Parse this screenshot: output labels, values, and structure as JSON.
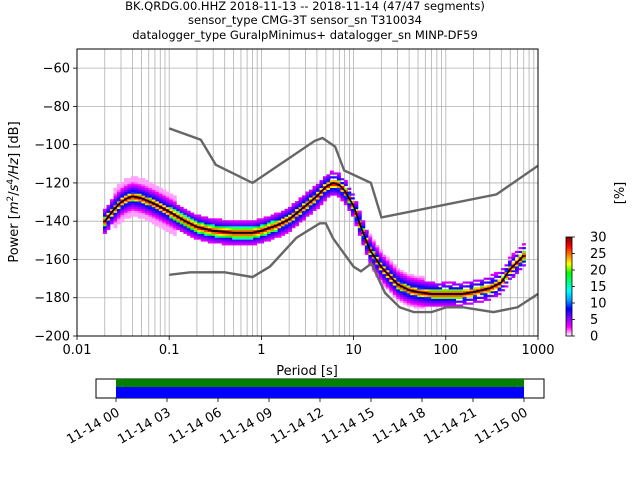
{
  "chart_data": {
    "type": "heatmap",
    "title_lines": [
      "BK.QRDG.00.HHZ   2018-11-13 -- 2018-11-14  (47/47 segments)",
      "sensor_type CMG-3T sensor_sn T310034",
      "datalogger_type GuralpMinimus+ datalogger_sn MINP-DF59"
    ],
    "xlabel": "Period [s]",
    "ylabel_parts": [
      "Power [",
      "m",
      "2",
      "/",
      "s",
      "4",
      "/Hz",
      "] [dB]"
    ],
    "x_scale": "log",
    "xlim": [
      0.01,
      1000
    ],
    "ylim": [
      -200,
      -50
    ],
    "x_ticks": [
      0.01,
      0.1,
      1,
      10,
      100,
      1000
    ],
    "x_tick_labels": [
      "0.01",
      "0.1",
      "1",
      "10",
      "100",
      "1000"
    ],
    "y_ticks": [
      -200,
      -180,
      -160,
      -140,
      -120,
      -100,
      -80,
      -60
    ],
    "y_tick_labels": [
      "−200",
      "−180",
      "−160",
      "−140",
      "−120",
      "−100",
      "−80",
      "−60"
    ],
    "grid": true,
    "colorbar": {
      "label": "[%]",
      "range": [
        0,
        30
      ],
      "ticks": [
        0,
        5,
        10,
        15,
        20,
        25,
        30
      ],
      "tick_labels": [
        "0",
        "5",
        "10",
        "15",
        "20",
        "25",
        "30"
      ],
      "colors": [
        "#ffffff",
        "#ff00ff",
        "#8000ff",
        "#0000ff",
        "#00a0ff",
        "#00ffff",
        "#00ff80",
        "#00ff00",
        "#ffff00",
        "#ff8000",
        "#ff0000",
        "#800000"
      ]
    },
    "noise_models": {
      "color": "#666666",
      "high": {
        "period": [
          0.1,
          0.22,
          0.32,
          0.8,
          3.8,
          4.6,
          6.3,
          7.9,
          15.4,
          20,
          354.8,
          1000
        ],
        "db": [
          -91.5,
          -97.4,
          -110.5,
          -120,
          -98,
          -96.5,
          -101,
          -113.5,
          -120,
          -138,
          -126,
          -111
        ]
      },
      "low": {
        "period": [
          0.1,
          0.17,
          0.4,
          0.8,
          1.24,
          2.4,
          4.3,
          5,
          6,
          10,
          12,
          15.6,
          21.9,
          31.6,
          45,
          70,
          101,
          154,
          328,
          600,
          1000
        ],
        "db": [
          -168,
          -166.7,
          -166.7,
          -169.2,
          -163.7,
          -148.6,
          -141.1,
          -141.1,
          -149,
          -163.8,
          -166.2,
          -162.1,
          -177.5,
          -185,
          -187.5,
          -187.5,
          -185,
          -185,
          -187.5,
          -185,
          -178
        ]
      }
    },
    "series": [
      {
        "name": "",
        "color": "#000000",
        "period": [
          0.02,
          0.025,
          0.03,
          0.035,
          0.04,
          0.05,
          0.07,
          0.1,
          0.15,
          0.2,
          0.3,
          0.5,
          0.8,
          1,
          1.5,
          2,
          3,
          4,
          5,
          6,
          7,
          8,
          10,
          12,
          15,
          20,
          25,
          30,
          40,
          50,
          70,
          100,
          150,
          200,
          300,
          400,
          500,
          700
        ],
        "db": [
          -140,
          -134,
          -130,
          -128,
          -127,
          -128,
          -131,
          -135,
          -140,
          -143,
          -145,
          -146,
          -146,
          -145,
          -142,
          -139,
          -132,
          -127,
          -122,
          -120,
          -121,
          -124,
          -132,
          -143,
          -155,
          -164,
          -169,
          -173,
          -176,
          -177,
          -178,
          -178,
          -178,
          -177,
          -175,
          -172,
          -165,
          -158
        ]
      }
    ]
  },
  "time_bar": {
    "tick_labels": [
      "11-14 00",
      "11-14 03",
      "11-14 06",
      "11-14 09",
      "11-14 12",
      "11-14 15",
      "11-14 18",
      "11-14 21",
      "11-15 00"
    ],
    "colors": {
      "top": "#008000",
      "bottom": "#0000ff"
    }
  }
}
